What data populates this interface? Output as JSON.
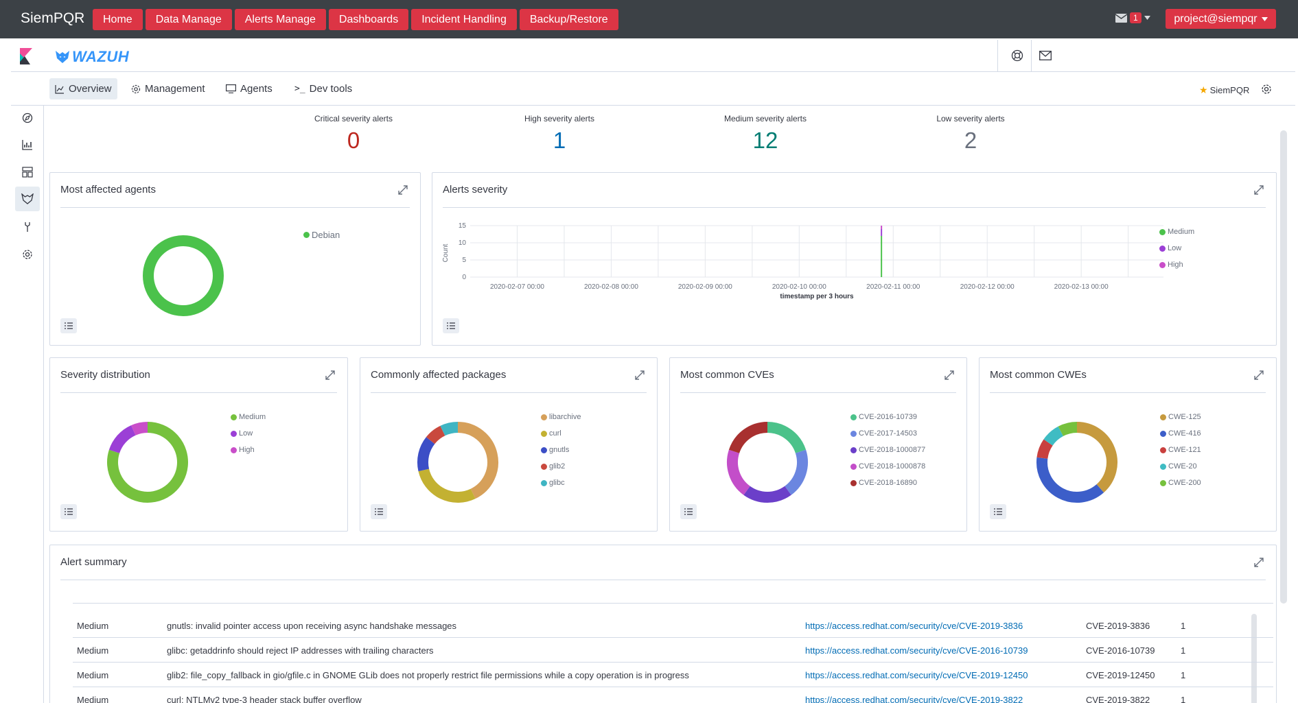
{
  "topbar": {
    "brand": "SiemPQR",
    "nav": [
      "Home",
      "Data Manage",
      "Alerts Manage",
      "Dashboards",
      "Incident Handling",
      "Backup/Restore"
    ],
    "mail_count": "1",
    "user": "project@siempqr"
  },
  "header": {
    "logo_text": "WAZUH"
  },
  "tabs": {
    "overview": "Overview",
    "management": "Management",
    "agents": "Agents",
    "devtools": "Dev tools"
  },
  "favorite": "SiemPQR",
  "stats": [
    {
      "label": "Critical severity alerts",
      "value": "0",
      "color": "#bd271e"
    },
    {
      "label": "High severity alerts",
      "value": "1",
      "color": "#006bb4"
    },
    {
      "label": "Medium severity alerts",
      "value": "12",
      "color": "#017d73"
    },
    {
      "label": "Low severity alerts",
      "value": "2",
      "color": "#69707d"
    }
  ],
  "panels": {
    "agents": {
      "title": "Most affected agents",
      "legend": [
        "Debian"
      ]
    },
    "alerts_severity": {
      "title": "Alerts severity"
    },
    "severity_dist": {
      "title": "Severity distribution",
      "legend": [
        "Medium",
        "Low",
        "High"
      ]
    },
    "packages": {
      "title": "Commonly affected packages",
      "legend": [
        "libarchive",
        "curl",
        "gnutls",
        "glib2",
        "glibc"
      ]
    },
    "cves": {
      "title": "Most common CVEs",
      "legend": [
        "CVE-2016-10739",
        "CVE-2017-14503",
        "CVE-2018-1000877",
        "CVE-2018-1000878",
        "CVE-2018-16890"
      ]
    },
    "cwes": {
      "title": "Most common CWEs",
      "legend": [
        "CWE-125",
        "CWE-416",
        "CWE-121",
        "CWE-20",
        "CWE-200"
      ]
    },
    "summary": {
      "title": "Alert summary"
    }
  },
  "chart_data": [
    {
      "type": "pie",
      "title": "Most affected agents",
      "labels": [
        "Debian"
      ],
      "values": [
        15
      ],
      "colors": [
        "#4bc24b"
      ]
    },
    {
      "type": "bar",
      "title": "Alerts severity",
      "xlabel": "timestamp per 3 hours",
      "ylabel": "Count",
      "ylim": [
        0,
        15
      ],
      "yticks": [
        "0",
        "5",
        "10",
        "15"
      ],
      "xticks": [
        "2020-02-07 00:00",
        "2020-02-08 00:00",
        "2020-02-09 00:00",
        "2020-02-10 00:00",
        "2020-02-11 00:00",
        "2020-02-12 00:00",
        "2020-02-13 00:00"
      ],
      "x": [
        "2020-02-10 21:00"
      ],
      "series": [
        {
          "name": "Medium",
          "values": [
            12
          ],
          "color": "#4bc24b"
        },
        {
          "name": "Low",
          "values": [
            2
          ],
          "color": "#9b3fd6"
        },
        {
          "name": "High",
          "values": [
            1
          ],
          "color": "#c94ec9"
        }
      ],
      "legend_position": "right",
      "grid": true
    },
    {
      "type": "pie",
      "title": "Severity distribution",
      "labels": [
        "Medium",
        "Low",
        "High"
      ],
      "values": [
        12,
        2,
        1
      ],
      "colors": [
        "#76c13d",
        "#9b3fd6",
        "#c94ec9"
      ]
    },
    {
      "type": "pie",
      "title": "Commonly affected packages",
      "labels": [
        "libarchive",
        "curl",
        "gnutls",
        "glib2",
        "glibc"
      ],
      "values": [
        6,
        4,
        2,
        1,
        1
      ],
      "colors": [
        "#d6a05a",
        "#c3b132",
        "#3c4ec6",
        "#c9493e",
        "#3fb5c3"
      ]
    },
    {
      "type": "pie",
      "title": "Most common CVEs",
      "labels": [
        "CVE-2016-10739",
        "CVE-2017-14503",
        "CVE-2018-1000877",
        "CVE-2018-1000878",
        "CVE-2018-16890"
      ],
      "values": [
        2,
        2,
        2,
        2,
        2
      ],
      "colors": [
        "#4bc28a",
        "#6b86e0",
        "#6b3fc9",
        "#c34ec9",
        "#a8302f"
      ]
    },
    {
      "type": "pie",
      "title": "Most common CWEs",
      "labels": [
        "CWE-125",
        "CWE-416",
        "CWE-121",
        "CWE-20",
        "CWE-200"
      ],
      "values": [
        5,
        5,
        1,
        1,
        1
      ],
      "colors": [
        "#c69a3e",
        "#3c5ec9",
        "#c9403e",
        "#3fbcc3",
        "#76c13d"
      ]
    }
  ],
  "alert_rows": [
    {
      "severity": "Medium",
      "title": "gnutls: invalid pointer access upon receiving async handshake messages",
      "link": "https://access.redhat.com/security/cve/CVE-2019-3836",
      "cve": "CVE-2019-3836",
      "count": "1"
    },
    {
      "severity": "Medium",
      "title": "glibc: getaddrinfo should reject IP addresses with trailing characters",
      "link": "https://access.redhat.com/security/cve/CVE-2016-10739",
      "cve": "CVE-2016-10739",
      "count": "1"
    },
    {
      "severity": "Medium",
      "title": "glib2: file_copy_fallback in gio/gfile.c in GNOME GLib does not properly restrict file permissions while a copy operation is in progress",
      "link": "https://access.redhat.com/security/cve/CVE-2019-12450",
      "cve": "CVE-2019-12450",
      "count": "1"
    },
    {
      "severity": "Medium",
      "title": "curl: NTLMv2 type-3 header stack buffer overflow",
      "link": "https://access.redhat.com/security/cve/CVE-2019-3822",
      "cve": "CVE-2019-3822",
      "count": "1"
    }
  ]
}
